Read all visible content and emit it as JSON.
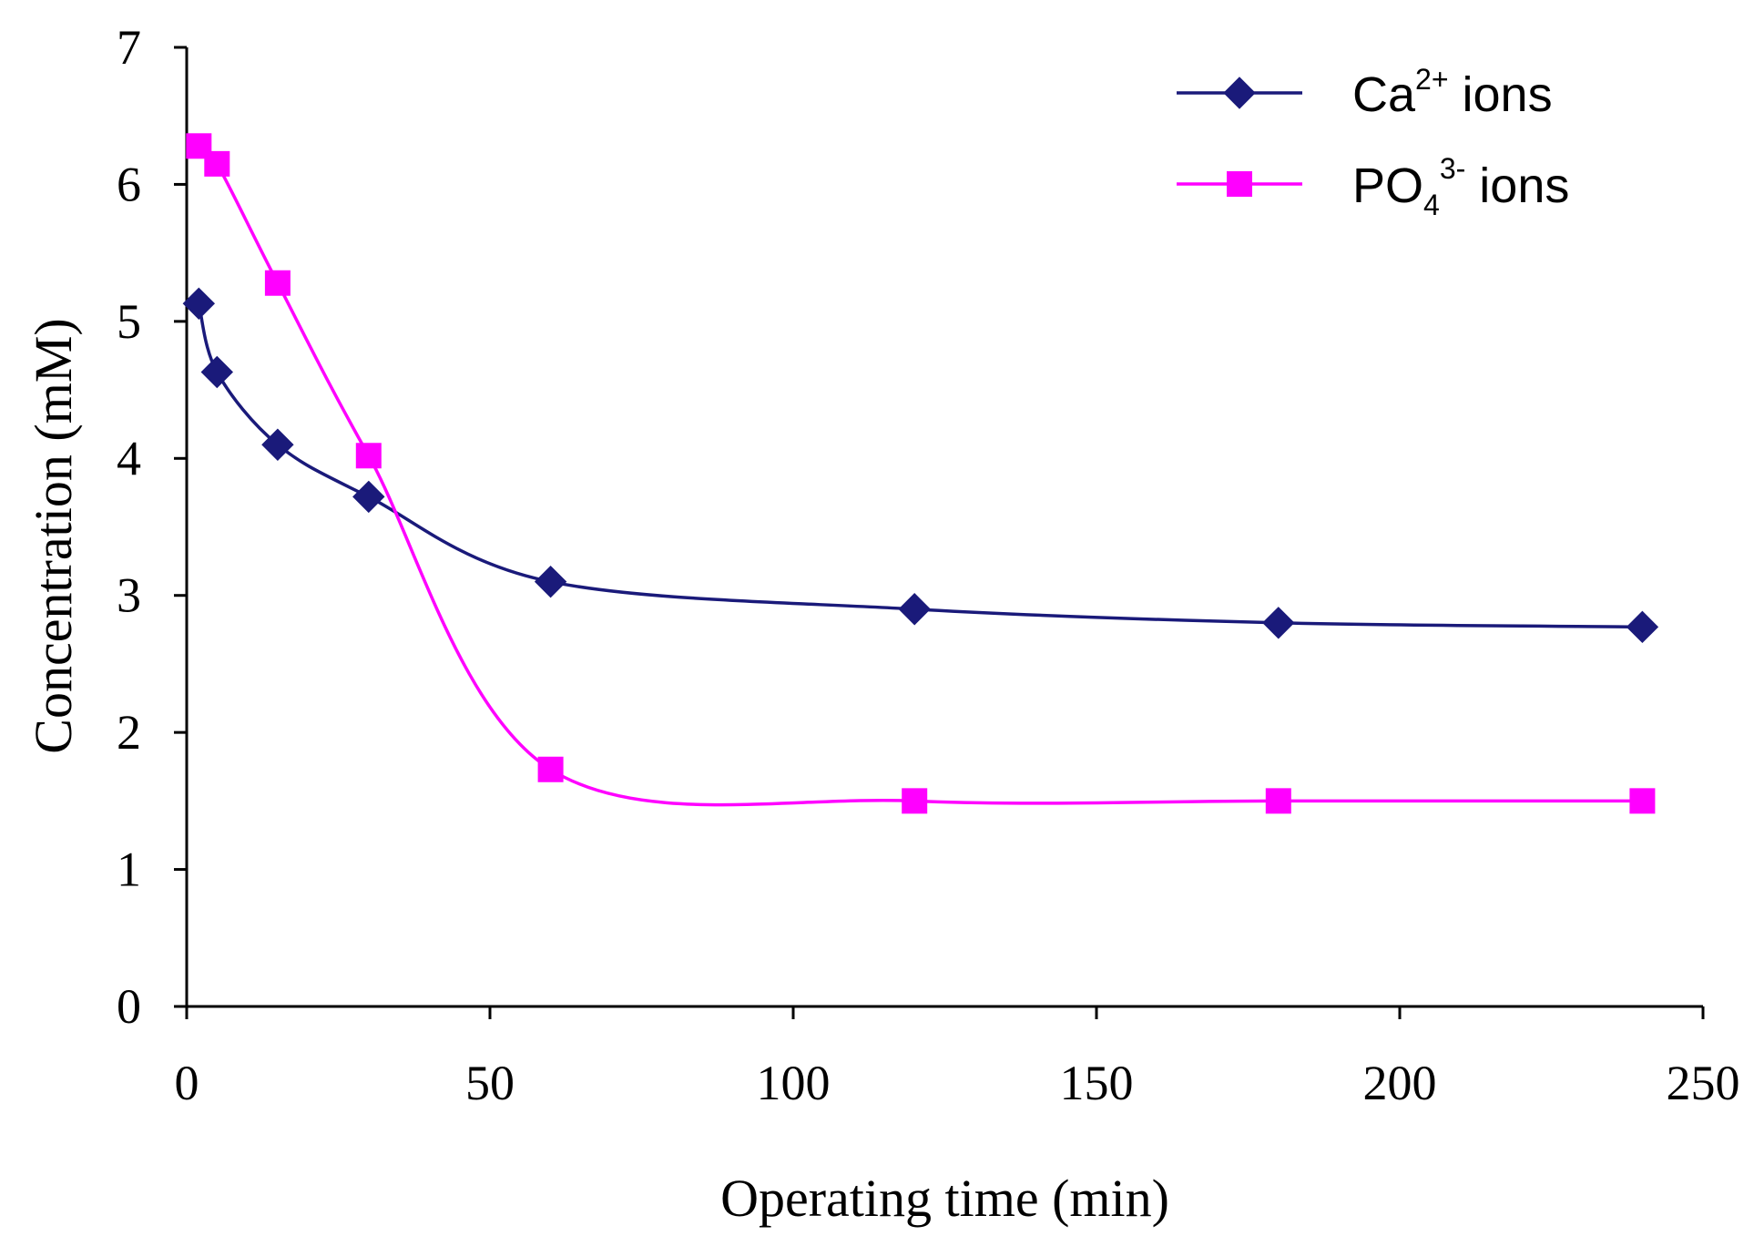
{
  "chart_data": {
    "type": "line",
    "title": "",
    "xlabel": "Operating time (min)",
    "ylabel": "Concentration (mM)",
    "xlim": [
      0,
      250
    ],
    "ylim": [
      0,
      7
    ],
    "xticks": [
      0,
      50,
      100,
      150,
      200,
      250
    ],
    "yticks": [
      0,
      1,
      2,
      3,
      4,
      5,
      6,
      7
    ],
    "xtick_labels": [
      "0",
      "50",
      "100",
      "150",
      "200",
      "250"
    ],
    "ytick_labels": [
      "0",
      "1",
      "2",
      "3",
      "4",
      "5",
      "6",
      "7"
    ],
    "grid": false,
    "legend_position": "top-right",
    "series": [
      {
        "name": "Ca2+ ions",
        "legend_base": "Ca",
        "legend_sub": "",
        "legend_sup": "2+",
        "legend_suffix": " ions",
        "marker": "diamond",
        "color": "#1a1a7a",
        "x": [
          2,
          5,
          15,
          30,
          60,
          120,
          180,
          240
        ],
        "y": [
          5.13,
          4.63,
          4.1,
          3.72,
          3.1,
          2.9,
          2.8,
          2.77
        ]
      },
      {
        "name": "PO43- ions",
        "legend_base": "PO",
        "legend_sub": "4",
        "legend_sup": "3-",
        "legend_suffix": " ions",
        "marker": "square",
        "color": "#ff00ff",
        "x": [
          2,
          5,
          15,
          30,
          60,
          120,
          180,
          240
        ],
        "y": [
          6.28,
          6.15,
          5.28,
          4.02,
          1.73,
          1.5,
          1.5,
          1.5
        ]
      }
    ]
  }
}
